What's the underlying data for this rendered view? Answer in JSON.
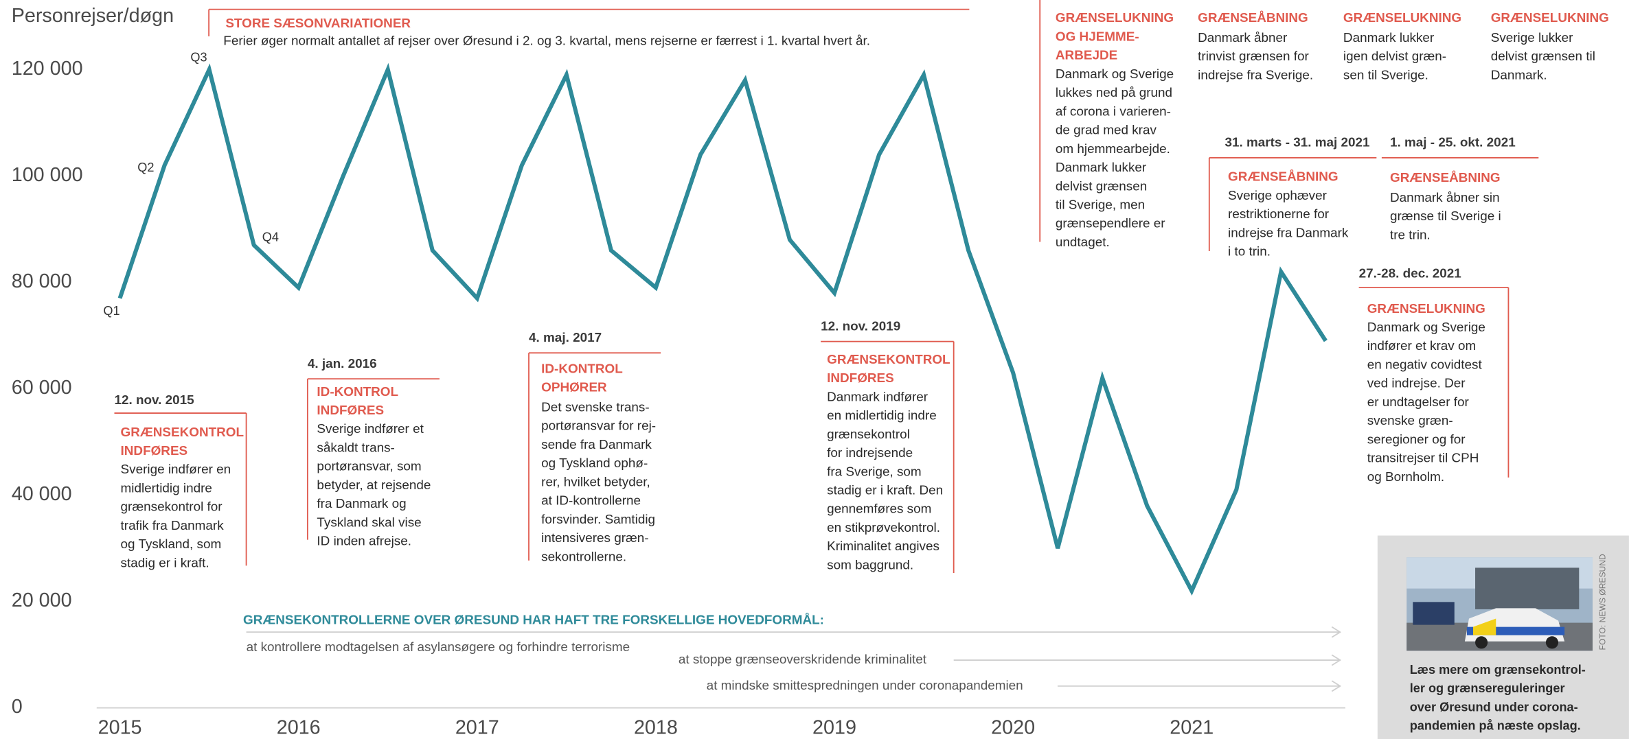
{
  "chart_data": {
    "type": "line",
    "y_label": "Personrejser/døgn",
    "color": "#2e8a99",
    "x": [
      2015,
      2015.25,
      2015.5,
      2015.75,
      2016,
      2016.25,
      2016.5,
      2016.75,
      2017,
      2017.25,
      2017.5,
      2017.75,
      2018,
      2018.25,
      2018.5,
      2018.75,
      2019,
      2019.25,
      2019.5,
      2019.75,
      2020,
      2020.25,
      2020.5,
      2020.75,
      2021,
      2021.25,
      2021.5,
      2021.75
    ],
    "values": [
      77000,
      102000,
      120000,
      87000,
      79000,
      100000,
      120000,
      86000,
      77000,
      102000,
      119000,
      86000,
      79000,
      104000,
      118000,
      88000,
      78000,
      104000,
      119000,
      86000,
      63000,
      30000,
      62000,
      38000,
      22000,
      41000,
      82000,
      69000
    ],
    "quarter_labels": [
      "Q1",
      "Q2",
      "Q3",
      "Q4"
    ],
    "xlim": [
      2014.87,
      2021.86
    ],
    "xticks": [
      2015,
      2016,
      2017,
      2018,
      2019,
      2020,
      2021
    ],
    "ylim": [
      0,
      120000
    ],
    "yticks": [
      0,
      {
        "value": 20000,
        "label": "20 000"
      },
      {
        "value": 40000,
        "label": "40 000"
      },
      {
        "value": 60000,
        "label": "60 000"
      },
      {
        "value": 80000,
        "label": "80 000"
      },
      {
        "value": 100000,
        "label": "100 000"
      },
      {
        "value": 120000,
        "label": "120 000"
      }
    ],
    "grid": false,
    "annotations": [
      {
        "heading": [
          "STORE SÆSONVARIATIONER"
        ],
        "text": [
          "Ferier øger normalt antallet af rejser over Øresund i 2. og 3. kvartal, mens rejserne er færrest i 1. kvartal hvert år."
        ]
      },
      {
        "date": "12. nov. 2015",
        "heading": [
          "GRÆNSEKONTROL",
          "INDFØRES"
        ],
        "text": [
          "Sverige indfører en",
          "midlertidig indre",
          "grænsekontrol for",
          "trafik fra Danmark",
          "og Tyskland, som",
          "stadig er i kraft."
        ]
      },
      {
        "date": "4. jan. 2016",
        "heading": [
          "ID-KONTROL",
          "INDFØRES"
        ],
        "text": [
          "Sverige indfører et",
          "såkaldt trans-",
          "portøransvar, som",
          "betyder, at rejsende",
          "fra Danmark og",
          "Tyskland skal vise",
          "ID inden afrejse."
        ]
      },
      {
        "date": "4. maj. 2017",
        "heading": [
          "ID-KONTROL",
          "OPHØRER"
        ],
        "text": [
          "Det svenske trans-",
          "portøransvar for rej-",
          "sende fra Danmark",
          "og Tyskland ophø-",
          "rer, hvilket betyder,",
          "at ID-kontrollerne",
          "forsvinder. Samtidig",
          "intensiveres græn-",
          "sekontrollerne."
        ]
      },
      {
        "date": "12. nov. 2019",
        "heading": [
          "GRÆNSEKONTROL",
          "INDFØRES"
        ],
        "text": [
          "Danmark indfører",
          "en midlertidig indre",
          "grænsekontrol",
          "for indrejsende",
          "fra Sverige, som",
          "stadig er i kraft. Den",
          "gennemføres som",
          "en stikprøvekontrol.",
          "Kriminalitet angives",
          "som baggrund."
        ]
      },
      {
        "heading": [
          "GRÆNSELUKNING",
          "OG HJEMME-",
          "ARBEJDE"
        ],
        "text": [
          "Danmark og Sverige",
          "lukkes ned på grund",
          "af corona i varieren-",
          "de grad med krav",
          "om hjemmearbejde.",
          "Danmark lukker",
          "delvist grænsen",
          "til Sverige, men",
          "grænsependlere er",
          "undtaget."
        ]
      },
      {
        "heading": [
          "GRÆNSEÅBNING"
        ],
        "text": [
          "Danmark åbner",
          "trinvist grænsen for",
          "indrejse fra Sverige."
        ]
      },
      {
        "heading": [
          "GRÆNSELUKNING"
        ],
        "text": [
          "Danmark lukker",
          "igen delvist græn-",
          "sen til Sverige."
        ]
      },
      {
        "heading": [
          "GRÆNSELUKNING"
        ],
        "text": [
          "Sverige lukker",
          "delvist grænsen til",
          "Danmark."
        ]
      },
      {
        "date": "31. marts - 31. maj 2021",
        "heading": [
          "GRÆNSEÅBNING"
        ],
        "text": [
          "Sverige ophæver",
          "restriktionerne for",
          "indrejse fra Danmark",
          "i to trin."
        ]
      },
      {
        "date": "1. maj - 25. okt. 2021",
        "heading": [
          "GRÆNSEÅBNING"
        ],
        "text": [
          "Danmark åbner sin",
          "grænse til Sverige i",
          "tre trin."
        ]
      },
      {
        "date": "27.-28. dec. 2021",
        "heading": [
          "GRÆNSELUKNING"
        ],
        "text": [
          "Danmark og Sverige",
          "indfører et krav om",
          "en negativ covidtest",
          "ved indrejse. Der",
          "er undtagelser for",
          "svenske græn-",
          "seregioner og for",
          "transitrejser til CPH",
          "og Bornholm."
        ]
      }
    ],
    "purposes": {
      "title": "GRÆNSEKONTROLLERNE OVER ØRESUND HAR HAFT TRE FORSKELLIGE HOVEDFORMÅL:",
      "items": [
        "at kontrollere modtagelsen af asylansøgere og forhindre terrorisme",
        "at stoppe grænseoverskridende kriminalitet",
        "at mindske smittespredningen under coronapandemien"
      ]
    },
    "photo_credit": "FOTO: NEWS ØRESUND",
    "photo_caption": [
      "Læs mere om grænsekontrol-",
      "ler og grænsereguleringer",
      "over Øresund under corona-",
      "pandemien på næste opslag."
    ]
  }
}
